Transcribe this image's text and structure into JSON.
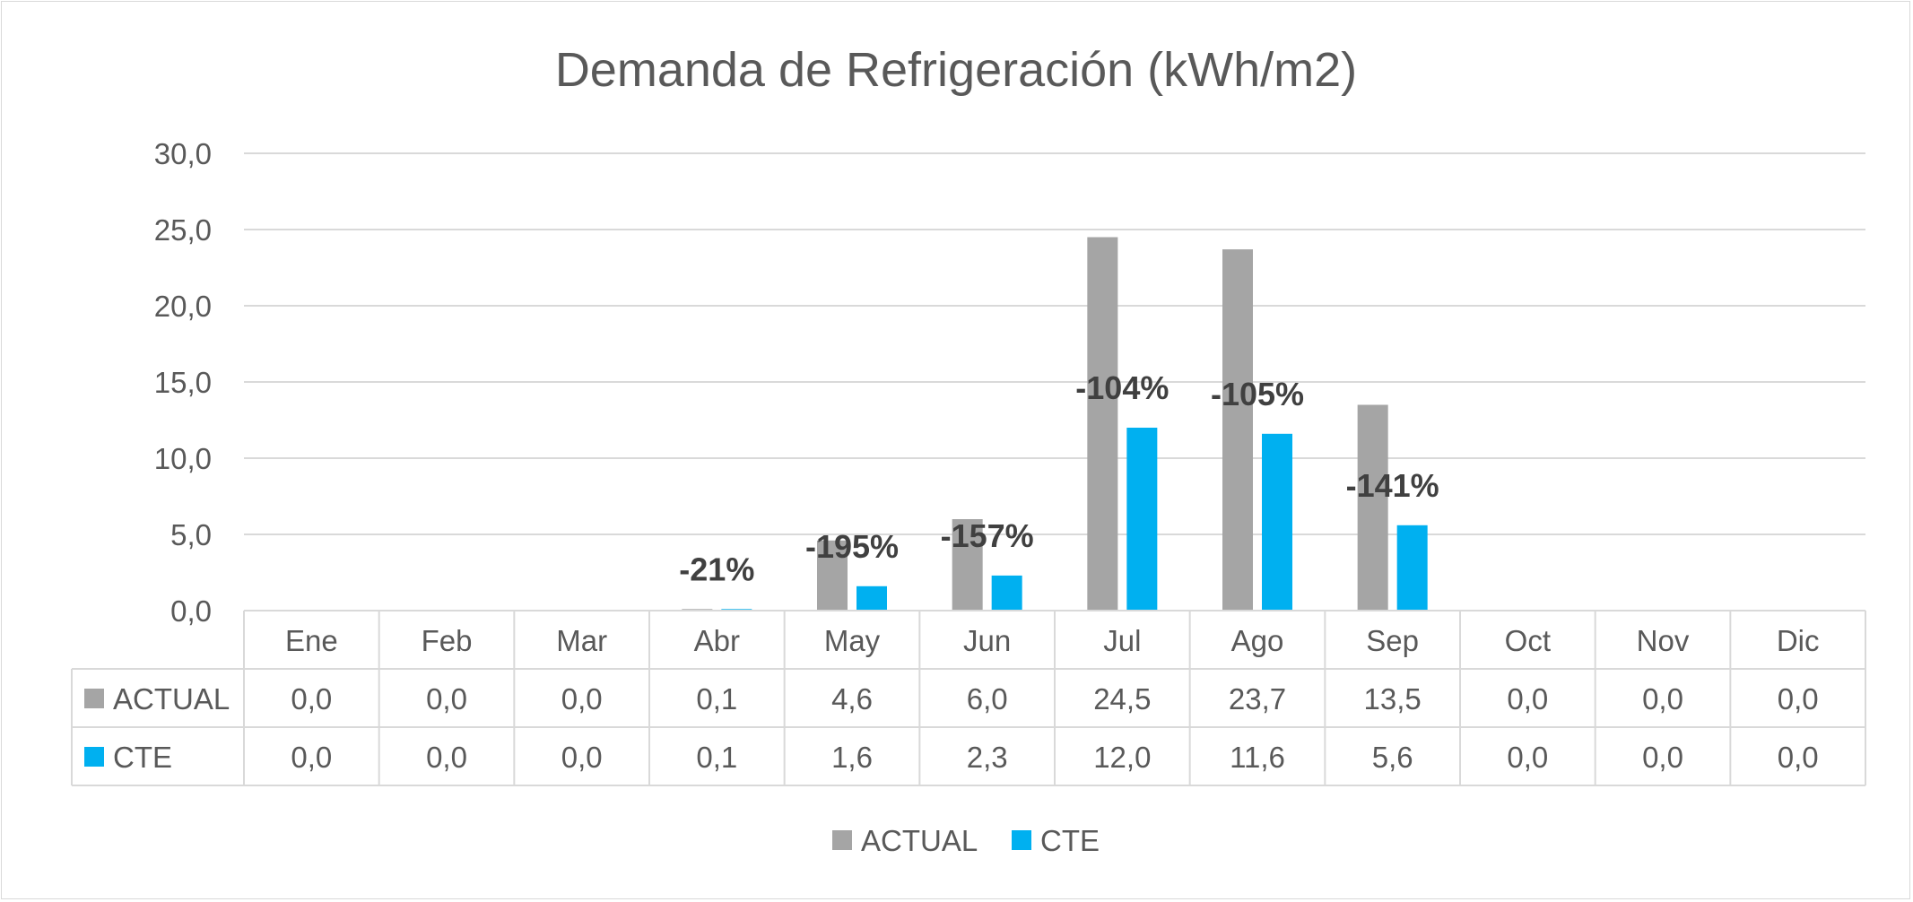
{
  "chart_data": {
    "type": "bar",
    "title": "Demanda de Refrigeración (kWh/m2)",
    "categories": [
      "Ene",
      "Feb",
      "Mar",
      "Abr",
      "May",
      "Jun",
      "Jul",
      "Ago",
      "Sep",
      "Oct",
      "Nov",
      "Dic"
    ],
    "series": [
      {
        "name": "ACTUAL",
        "color": "#a5a5a5",
        "values": [
          0.0,
          0.0,
          0.0,
          0.1,
          4.6,
          6.0,
          24.5,
          23.7,
          13.5,
          0.0,
          0.0,
          0.0
        ],
        "labels": [
          "0,0",
          "0,0",
          "0,0",
          "0,1",
          "4,6",
          "6,0",
          "24,5",
          "23,7",
          "13,5",
          "0,0",
          "0,0",
          "0,0"
        ]
      },
      {
        "name": "CTE",
        "color": "#00b0f0",
        "values": [
          0.0,
          0.0,
          0.0,
          0.1,
          1.6,
          2.3,
          12.0,
          11.6,
          5.6,
          0.0,
          0.0,
          0.0
        ],
        "labels": [
          "0,0",
          "0,0",
          "0,0",
          "0,1",
          "1,6",
          "2,3",
          "12,0",
          "11,6",
          "5,6",
          "0,0",
          "0,0",
          "0,0"
        ]
      }
    ],
    "annotations": [
      {
        "category": "Abr",
        "text": "-21%"
      },
      {
        "category": "May",
        "text": "-195%"
      },
      {
        "category": "Jun",
        "text": "-157%"
      },
      {
        "category": "Jul",
        "text": "-104%"
      },
      {
        "category": "Ago",
        "text": "-105%"
      },
      {
        "category": "Sep",
        "text": "-141%"
      }
    ],
    "ylim": [
      0,
      30
    ],
    "yticks": [
      0,
      5,
      10,
      15,
      20,
      25,
      30
    ],
    "ytick_labels": [
      "0,0",
      "5,0",
      "10,0",
      "15,0",
      "20,0",
      "25,0",
      "30,0"
    ],
    "grid": true,
    "legend": "bottom",
    "data_table": true
  }
}
